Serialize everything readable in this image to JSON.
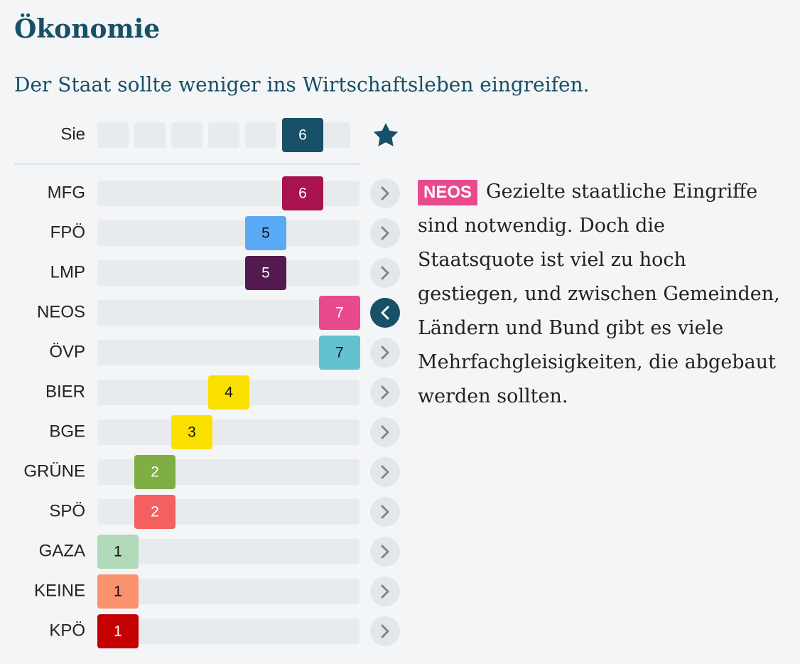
{
  "chart_data": {
    "type": "position",
    "title": "Ökonomie",
    "subtitle": "Der Staat sollte weniger ins Wirtschaftsleben eingreifen.",
    "xlim": [
      1,
      7
    ],
    "user": {
      "label": "Sie",
      "value": 6,
      "color": "#175067"
    },
    "categories": [
      "MFG",
      "FPÖ",
      "LMP",
      "NEOS",
      "ÖVP",
      "BIER",
      "BGE",
      "GRÜNE",
      "SPÖ",
      "GAZA",
      "KEINE",
      "KPÖ"
    ],
    "values": [
      6,
      5,
      5,
      7,
      7,
      4,
      3,
      2,
      2,
      1,
      1,
      1
    ],
    "colors": [
      "#a8124f",
      "#5aa9f5",
      "#521a4f",
      "#e84a8d",
      "#63c2d0",
      "#f9e000",
      "#f9e000",
      "#7fae45",
      "#f4605f",
      "#b2d9b9",
      "#fa9270",
      "#c40000"
    ],
    "selected": 3,
    "explanation": {
      "party": "NEOS",
      "text": "Gezielte staatliche Eingriffe sind notwendig. Doch die Staatsquote ist viel zu hoch gestiegen, und zwischen Gemeinden, Ländern und Bund gibt es viele Mehrfachgleisigkeiten, die abgebaut werden sollten."
    }
  }
}
